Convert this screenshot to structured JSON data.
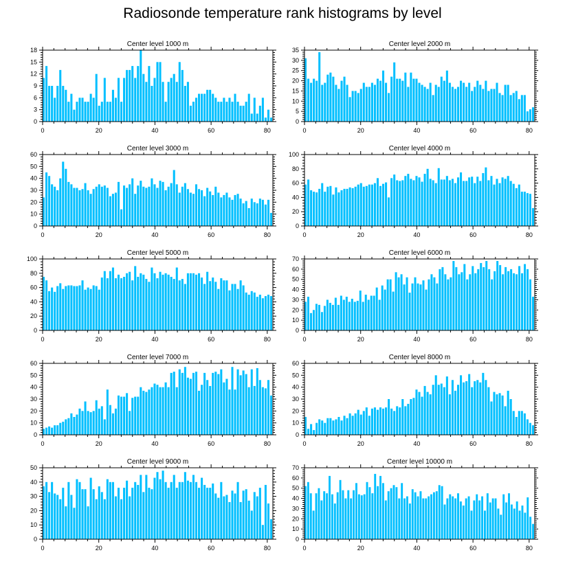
{
  "figure": {
    "title": "Radiosonde temperature rank histograms by level",
    "bar_color": "#00bfff"
  },
  "chart_data": [
    {
      "type": "bar",
      "title": "Center level 1000 m",
      "xlim": [
        0,
        82
      ],
      "xticks": [
        0,
        20,
        40,
        60,
        80
      ],
      "ylim": [
        0,
        18
      ],
      "yticks": [
        0,
        3,
        6,
        9,
        12,
        15,
        18
      ],
      "values": [
        11,
        14,
        9,
        9,
        6,
        9,
        13,
        9,
        8,
        5,
        7,
        3,
        5,
        6,
        6,
        5,
        5,
        7,
        6,
        12,
        4,
        5,
        11,
        5,
        5,
        8,
        6,
        11,
        5,
        11,
        13,
        13,
        14,
        11,
        14,
        18,
        12,
        10,
        14,
        9,
        11,
        15,
        15,
        10,
        5,
        10,
        11,
        12,
        10,
        15,
        13,
        9,
        10,
        4,
        5,
        6,
        7,
        7,
        7,
        8,
        8,
        7,
        6,
        5,
        5,
        6,
        5,
        6,
        5,
        7,
        5,
        4,
        4,
        5,
        7,
        2,
        6,
        2,
        4,
        6,
        1,
        3,
        1
      ]
    },
    {
      "type": "bar",
      "title": "Center level 2000 m",
      "xlim": [
        0,
        82
      ],
      "xticks": [
        0,
        20,
        40,
        60,
        80
      ],
      "ylim": [
        0,
        35
      ],
      "yticks": [
        0,
        5,
        10,
        15,
        20,
        25,
        30,
        35
      ],
      "values": [
        31,
        21,
        19,
        21,
        20,
        34,
        18,
        19,
        23,
        24,
        22,
        18,
        16,
        20,
        22,
        18,
        12,
        15,
        15,
        14,
        16,
        19,
        17,
        17,
        19,
        18,
        21,
        20,
        25,
        19,
        14,
        22,
        29,
        21,
        21,
        20,
        24,
        17,
        24,
        21,
        21,
        19,
        18,
        17,
        16,
        19,
        13,
        18,
        17,
        22,
        20,
        25,
        19,
        17,
        16,
        17,
        20,
        19,
        17,
        19,
        15,
        17,
        20,
        18,
        16,
        20,
        15,
        16,
        16,
        19,
        14,
        13,
        18,
        18,
        13,
        14,
        15,
        11,
        13,
        13,
        5,
        6,
        7
      ]
    },
    {
      "type": "bar",
      "title": "Center level 3000 m",
      "xlim": [
        0,
        82
      ],
      "xticks": [
        0,
        20,
        40,
        60,
        80
      ],
      "ylim": [
        0,
        60
      ],
      "yticks": [
        0,
        10,
        20,
        30,
        40,
        50,
        60
      ],
      "values": [
        24,
        45,
        42,
        35,
        33,
        30,
        40,
        54,
        48,
        37,
        35,
        32,
        32,
        30,
        31,
        36,
        30,
        27,
        31,
        33,
        35,
        33,
        34,
        32,
        25,
        27,
        28,
        37,
        14,
        34,
        32,
        35,
        40,
        27,
        34,
        38,
        33,
        32,
        33,
        40,
        35,
        32,
        38,
        37,
        30,
        33,
        36,
        47,
        35,
        28,
        33,
        36,
        31,
        28,
        27,
        35,
        31,
        30,
        25,
        32,
        29,
        26,
        33,
        28,
        24,
        26,
        28,
        24,
        22,
        26,
        27,
        23,
        19,
        21,
        15,
        23,
        20,
        19,
        23,
        22,
        18,
        22,
        11
      ]
    },
    {
      "type": "bar",
      "title": "Center level 4000 m",
      "xlim": [
        0,
        82
      ],
      "xticks": [
        0,
        20,
        40,
        60,
        80
      ],
      "ylim": [
        0,
        100
      ],
      "yticks": [
        0,
        20,
        40,
        60,
        80,
        100
      ],
      "values": [
        58,
        65,
        50,
        48,
        47,
        52,
        60,
        48,
        55,
        56,
        44,
        54,
        47,
        50,
        52,
        52,
        54,
        53,
        55,
        58,
        60,
        55,
        56,
        58,
        58,
        60,
        67,
        56,
        59,
        61,
        40,
        67,
        72,
        64,
        63,
        64,
        70,
        73,
        66,
        64,
        70,
        68,
        62,
        73,
        80,
        66,
        64,
        60,
        81,
        65,
        65,
        70,
        64,
        66,
        60,
        68,
        75,
        63,
        63,
        68,
        69,
        60,
        69,
        63,
        74,
        82,
        64,
        70,
        58,
        66,
        60,
        68,
        66,
        70,
        63,
        59,
        53,
        58,
        48,
        48,
        46,
        45,
        25
      ]
    },
    {
      "type": "bar",
      "title": "Center level 5000 m",
      "xlim": [
        0,
        82
      ],
      "xticks": [
        0,
        20,
        40,
        60,
        80
      ],
      "ylim": [
        0,
        100
      ],
      "yticks": [
        0,
        20,
        40,
        60,
        80,
        100
      ],
      "values": [
        75,
        70,
        55,
        60,
        54,
        62,
        66,
        58,
        62,
        63,
        63,
        62,
        62,
        63,
        70,
        57,
        60,
        58,
        63,
        62,
        57,
        74,
        83,
        73,
        83,
        88,
        73,
        78,
        73,
        75,
        80,
        82,
        70,
        90,
        75,
        80,
        78,
        72,
        68,
        88,
        80,
        73,
        82,
        78,
        80,
        78,
        75,
        72,
        88,
        70,
        72,
        65,
        80,
        80,
        80,
        78,
        80,
        74,
        65,
        82,
        69,
        74,
        68,
        58,
        73,
        70,
        70,
        56,
        65,
        65,
        58,
        70,
        63,
        53,
        50,
        55,
        53,
        47,
        50,
        45,
        48,
        50,
        48
      ]
    },
    {
      "type": "bar",
      "title": "Center level 6000 m",
      "xlim": [
        0,
        82
      ],
      "xticks": [
        0,
        20,
        40,
        60,
        80
      ],
      "ylim": [
        0,
        70
      ],
      "yticks": [
        0,
        10,
        20,
        30,
        40,
        50,
        60,
        70
      ],
      "values": [
        28,
        33,
        17,
        20,
        26,
        25,
        18,
        24,
        30,
        27,
        25,
        32,
        25,
        34,
        30,
        33,
        28,
        31,
        28,
        29,
        39,
        28,
        35,
        30,
        34,
        34,
        42,
        30,
        44,
        40,
        50,
        50,
        38,
        57,
        52,
        55,
        45,
        52,
        37,
        46,
        52,
        46,
        45,
        49,
        40,
        50,
        55,
        52,
        46,
        60,
        62,
        55,
        50,
        52,
        68,
        62,
        55,
        57,
        65,
        50,
        55,
        63,
        56,
        60,
        66,
        62,
        68,
        60,
        50,
        58,
        68,
        64,
        55,
        62,
        58,
        60,
        56,
        55,
        63,
        56,
        65,
        60,
        50,
        33
      ]
    },
    {
      "type": "bar",
      "title": "Center level 7000 m",
      "xlim": [
        0,
        82
      ],
      "xticks": [
        0,
        20,
        40,
        60,
        80
      ],
      "ylim": [
        0,
        60
      ],
      "yticks": [
        0,
        10,
        20,
        30,
        40,
        50,
        60
      ],
      "values": [
        5,
        6,
        7,
        6,
        8,
        8,
        10,
        11,
        13,
        14,
        18,
        15,
        17,
        22,
        20,
        28,
        20,
        19,
        20,
        29,
        22,
        24,
        13,
        38,
        25,
        18,
        22,
        33,
        32,
        32,
        35,
        20,
        31,
        32,
        32,
        40,
        37,
        36,
        38,
        40,
        43,
        42,
        40,
        40,
        44,
        40,
        52,
        53,
        40,
        55,
        52,
        57,
        48,
        47,
        52,
        53,
        37,
        42,
        52,
        46,
        41,
        52,
        53,
        51,
        55,
        44,
        47,
        38,
        57,
        38,
        55,
        50,
        54,
        51,
        40,
        55,
        41,
        56,
        46,
        40,
        39,
        46,
        33
      ]
    },
    {
      "type": "bar",
      "title": "Center level 8000 m",
      "xlim": [
        0,
        82
      ],
      "xticks": [
        0,
        20,
        40,
        60,
        80
      ],
      "ylim": [
        0,
        60
      ],
      "yticks": [
        0,
        10,
        20,
        30,
        40,
        50,
        60
      ],
      "values": [
        15,
        5,
        9,
        4,
        10,
        13,
        12,
        10,
        14,
        14,
        12,
        13,
        15,
        12,
        16,
        14,
        18,
        16,
        18,
        21,
        17,
        20,
        23,
        16,
        22,
        23,
        21,
        23,
        22,
        23,
        30,
        22,
        20,
        24,
        23,
        30,
        24,
        26,
        30,
        31,
        38,
        36,
        32,
        41,
        36,
        34,
        42,
        50,
        42,
        43,
        40,
        49,
        34,
        46,
        37,
        42,
        50,
        44,
        45,
        51,
        40,
        45,
        46,
        44,
        52,
        46,
        40,
        28,
        36,
        34,
        35,
        33,
        24,
        37,
        30,
        20,
        15,
        20,
        20,
        18,
        13,
        10,
        8
      ]
    },
    {
      "type": "bar",
      "title": "Center level 9000 m",
      "xlim": [
        0,
        82
      ],
      "xticks": [
        0,
        20,
        40,
        60,
        80
      ],
      "ylim": [
        0,
        50
      ],
      "yticks": [
        0,
        10,
        20,
        30,
        40,
        50
      ],
      "values": [
        37,
        40,
        33,
        40,
        32,
        31,
        28,
        36,
        23,
        40,
        31,
        22,
        42,
        40,
        35,
        35,
        23,
        43,
        35,
        28,
        37,
        33,
        28,
        42,
        40,
        40,
        30,
        36,
        28,
        36,
        41,
        30,
        36,
        40,
        38,
        45,
        33,
        45,
        36,
        35,
        43,
        47,
        42,
        48,
        40,
        36,
        40,
        45,
        36,
        40,
        40,
        47,
        41,
        40,
        45,
        40,
        36,
        43,
        38,
        36,
        36,
        39,
        32,
        29,
        40,
        30,
        31,
        26,
        34,
        32,
        40,
        26,
        34,
        35,
        27,
        20,
        33,
        30,
        36,
        10,
        38,
        25,
        14
      ]
    },
    {
      "type": "bar",
      "title": "Center level 10000 m",
      "xlim": [
        0,
        82
      ],
      "xticks": [
        0,
        20,
        40,
        60,
        80
      ],
      "ylim": [
        0,
        70
      ],
      "yticks": [
        0,
        10,
        20,
        30,
        40,
        50,
        60,
        70
      ],
      "values": [
        52,
        56,
        45,
        28,
        45,
        50,
        38,
        47,
        45,
        62,
        44,
        35,
        46,
        58,
        48,
        40,
        48,
        40,
        48,
        55,
        44,
        43,
        44,
        56,
        51,
        45,
        64,
        52,
        62,
        55,
        38,
        47,
        50,
        53,
        51,
        40,
        55,
        40,
        42,
        35,
        49,
        46,
        42,
        47,
        40,
        40,
        42,
        44,
        46,
        47,
        53,
        52,
        34,
        40,
        44,
        42,
        40,
        45,
        37,
        33,
        40,
        42,
        28,
        38,
        44,
        38,
        42,
        28,
        45,
        36,
        40,
        40,
        30,
        24,
        44,
        36,
        45,
        34,
        30,
        37,
        28,
        33,
        26,
        41,
        22,
        15
      ]
    }
  ]
}
